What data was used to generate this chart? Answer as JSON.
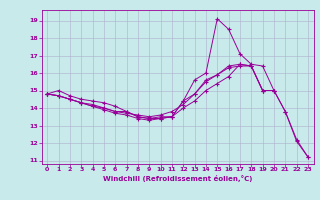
{
  "title": "",
  "xlabel": "Windchill (Refroidissement éolien,°C)",
  "ylabel": "",
  "bg_color": "#c8eaea",
  "line_color": "#990099",
  "grid_color": "#b0b0cc",
  "xlim": [
    -0.5,
    23.5
  ],
  "ylim": [
    10.8,
    19.6
  ],
  "xticks": [
    0,
    1,
    2,
    3,
    4,
    5,
    6,
    7,
    8,
    9,
    10,
    11,
    12,
    13,
    14,
    15,
    16,
    17,
    18,
    19,
    20,
    21,
    22,
    23
  ],
  "yticks": [
    11,
    12,
    13,
    14,
    15,
    16,
    17,
    18,
    19
  ],
  "series1": [
    [
      0,
      14.8
    ],
    [
      1,
      15.0
    ],
    [
      2,
      14.7
    ],
    [
      3,
      14.5
    ],
    [
      4,
      14.4
    ],
    [
      5,
      14.3
    ],
    [
      6,
      14.1
    ],
    [
      7,
      13.8
    ],
    [
      8,
      13.5
    ],
    [
      9,
      13.4
    ],
    [
      10,
      13.4
    ],
    [
      11,
      13.5
    ],
    [
      12,
      14.4
    ],
    [
      13,
      15.6
    ],
    [
      14,
      16.0
    ],
    [
      15,
      19.1
    ],
    [
      16,
      18.5
    ],
    [
      17,
      17.1
    ],
    [
      18,
      16.5
    ],
    [
      19,
      16.4
    ],
    [
      20,
      15.0
    ],
    [
      21,
      13.8
    ],
    [
      22,
      12.1
    ],
    [
      23,
      11.2
    ]
  ],
  "series2": [
    [
      0,
      14.8
    ],
    [
      1,
      14.7
    ],
    [
      2,
      14.5
    ],
    [
      3,
      14.3
    ],
    [
      4,
      14.1
    ],
    [
      5,
      14.0
    ],
    [
      6,
      13.8
    ],
    [
      7,
      13.7
    ],
    [
      8,
      13.6
    ],
    [
      9,
      13.5
    ],
    [
      10,
      13.6
    ],
    [
      11,
      13.8
    ],
    [
      12,
      14.2
    ],
    [
      13,
      14.8
    ],
    [
      14,
      15.5
    ],
    [
      15,
      15.9
    ],
    [
      16,
      16.3
    ],
    [
      17,
      16.4
    ],
    [
      18,
      16.4
    ],
    [
      19,
      15.0
    ],
    [
      20,
      15.0
    ],
    [
      21,
      13.8
    ],
    [
      22,
      12.2
    ],
    [
      23,
      11.2
    ]
  ],
  "series3": [
    [
      0,
      14.8
    ],
    [
      1,
      14.7
    ],
    [
      2,
      14.5
    ],
    [
      3,
      14.3
    ],
    [
      4,
      14.2
    ],
    [
      5,
      14.0
    ],
    [
      6,
      13.8
    ],
    [
      7,
      13.8
    ],
    [
      8,
      13.5
    ],
    [
      9,
      13.4
    ],
    [
      10,
      13.5
    ],
    [
      11,
      13.5
    ],
    [
      12,
      14.4
    ],
    [
      13,
      14.8
    ],
    [
      14,
      15.6
    ],
    [
      15,
      15.9
    ],
    [
      16,
      16.4
    ],
    [
      17,
      16.5
    ],
    [
      18,
      16.4
    ],
    [
      19,
      15.0
    ],
    [
      20,
      15.0
    ]
  ],
  "series4": [
    [
      0,
      14.8
    ],
    [
      1,
      14.7
    ],
    [
      2,
      14.5
    ],
    [
      3,
      14.3
    ],
    [
      4,
      14.1
    ],
    [
      5,
      13.9
    ],
    [
      6,
      13.7
    ],
    [
      7,
      13.6
    ],
    [
      8,
      13.4
    ],
    [
      9,
      13.3
    ],
    [
      10,
      13.4
    ],
    [
      11,
      13.5
    ],
    [
      12,
      14.0
    ],
    [
      13,
      14.4
    ],
    [
      14,
      15.0
    ],
    [
      15,
      15.4
    ],
    [
      16,
      15.8
    ],
    [
      17,
      16.5
    ],
    [
      18,
      16.4
    ],
    [
      19,
      15.0
    ],
    [
      20,
      15.0
    ]
  ]
}
